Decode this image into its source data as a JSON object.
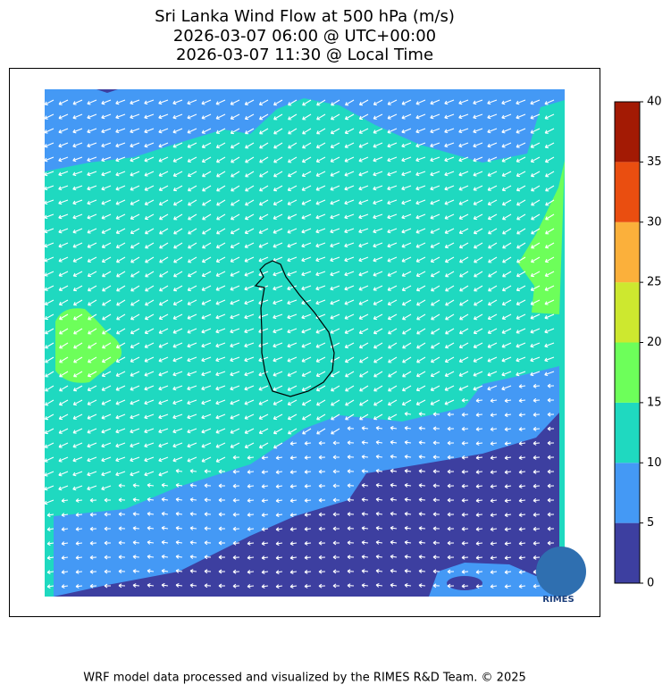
{
  "title": [
    "Sri Lanka Wind Flow at 500 hPa (m/s)",
    "2026-03-07 06:00 @ UTC+00:00",
    "2026-03-07 11:30 @ Local Time"
  ],
  "colorbar": {
    "ticks": [
      0,
      5,
      10,
      15,
      20,
      25,
      30,
      35,
      40
    ],
    "colors": [
      "#3d3fa0",
      "#4499f5",
      "#1fd9c0",
      "#6dff5a",
      "#cde82f",
      "#fbb03b",
      "#ea4e10",
      "#a31a04"
    ]
  },
  "logo": "RIMES",
  "footer": "WRF model data processed and visualized by the RIMES R&D Team. © 2025"
}
